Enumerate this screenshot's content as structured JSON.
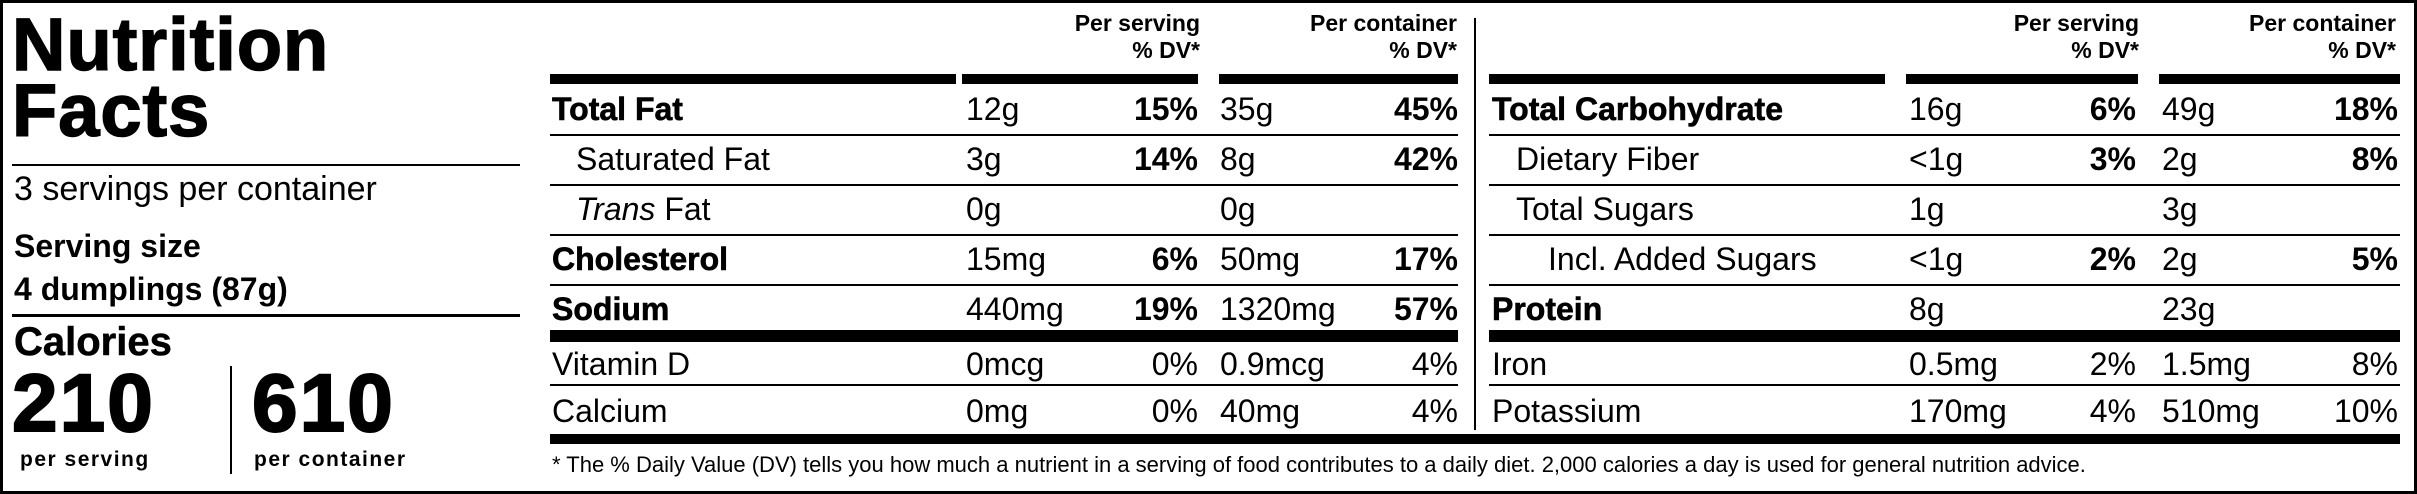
{
  "panel": {
    "title_line1": "Nutrition",
    "title_line2": "Facts",
    "servings_per_container": "3 servings per container",
    "serving_size_label": "Serving size",
    "serving_size_value": "4 dumplings (87g)",
    "calories_label": "Calories",
    "calories_per_serving": "210",
    "calories_per_serving_label": "per serving",
    "calories_per_container": "610",
    "calories_per_container_label": "per container"
  },
  "headers": {
    "per_serving_line1": "Per serving",
    "per_serving_line2": "% DV*",
    "per_container_line1": "Per container",
    "per_container_line2": "% DV*"
  },
  "left_nutrients": [
    {
      "name": "Total Fat",
      "serving_amount": "12g",
      "serving_dv": "15%",
      "container_amount": "35g",
      "container_dv": "45%"
    },
    {
      "name": "Saturated Fat",
      "serving_amount": "3g",
      "serving_dv": "14%",
      "container_amount": "8g",
      "container_dv": "42%"
    },
    {
      "name_italic": "Trans",
      "name_rest": " Fat",
      "serving_amount": "0g",
      "serving_dv": "",
      "container_amount": "0g",
      "container_dv": ""
    },
    {
      "name": "Cholesterol",
      "serving_amount": "15mg",
      "serving_dv": "6%",
      "container_amount": "50mg",
      "container_dv": "17%"
    },
    {
      "name": "Sodium",
      "serving_amount": "440mg",
      "serving_dv": "19%",
      "container_amount": "1320mg",
      "container_dv": "57%"
    }
  ],
  "right_nutrients": [
    {
      "name": "Total Carbohydrate",
      "serving_amount": "16g",
      "serving_dv": "6%",
      "container_amount": "49g",
      "container_dv": "18%"
    },
    {
      "name": "Dietary Fiber",
      "serving_amount": "<1g",
      "serving_dv": "3%",
      "container_amount": "2g",
      "container_dv": "8%"
    },
    {
      "name": "Total Sugars",
      "serving_amount": "1g",
      "serving_dv": "",
      "container_amount": "3g",
      "container_dv": ""
    },
    {
      "name": "Incl. Added Sugars",
      "serving_amount": "<1g",
      "serving_dv": "2%",
      "container_amount": "2g",
      "container_dv": "5%"
    },
    {
      "name": "Protein",
      "serving_amount": "8g",
      "serving_dv": "",
      "container_amount": "23g",
      "container_dv": ""
    }
  ],
  "left_vitamins": [
    {
      "name": "Vitamin D",
      "serving_amount": "0mcg",
      "serving_dv": "0%",
      "container_amount": "0.9mcg",
      "container_dv": "4%"
    },
    {
      "name": "Calcium",
      "serving_amount": "0mg",
      "serving_dv": "0%",
      "container_amount": "40mg",
      "container_dv": "4%"
    }
  ],
  "right_vitamins": [
    {
      "name": "Iron",
      "serving_amount": "0.5mg",
      "serving_dv": "2%",
      "container_amount": "1.5mg",
      "container_dv": "8%"
    },
    {
      "name": "Potassium",
      "serving_amount": "170mg",
      "serving_dv": "4%",
      "container_amount": "510mg",
      "container_dv": "10%"
    }
  ],
  "footnote": "* The % Daily Value (DV) tells you how much a nutrient in a serving of food contributes to a daily diet. 2,000 calories a day is used for general nutrition advice."
}
